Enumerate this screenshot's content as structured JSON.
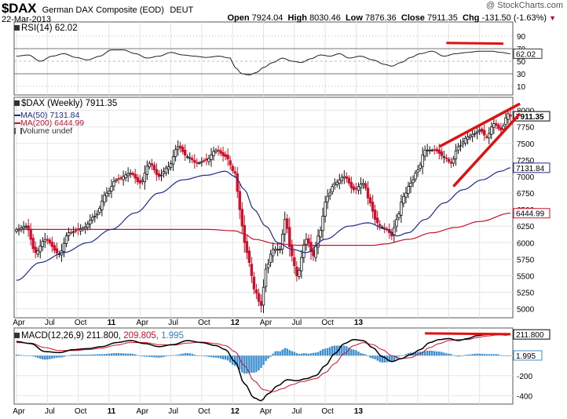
{
  "header": {
    "symbol": "$DAX",
    "company": "German DAX Composite (EOD)",
    "exchange": "DEUT",
    "date": "22-Mar-2013",
    "copyright": "@ StockCharts.com",
    "open_label": "Open",
    "open": "7924.04",
    "high_label": "High",
    "high": "8030.46",
    "low_label": "Low",
    "low": "7876.36",
    "close_label": "Close",
    "close": "7911.35",
    "chg_label": "Chg",
    "chg": "-131.50 (-1.63%)",
    "chg_icon": "down-triangle-icon"
  },
  "legend": {
    "price": "$DAX (Weekly) 7911.35",
    "ma50": "MA(50) 7131.84",
    "ma200": "MA(200) 6444.99",
    "volume": "Volume undef",
    "rsi": "RSI(14) 62.02",
    "macd_prefix": "MACD(12,26,9)",
    "macd_line": "211.800,",
    "macd_signal": "209.805,",
    "macd_hist": "1.995"
  },
  "chart_data": {
    "type": "candlestick",
    "period": "weekly",
    "x_tick_labels": [
      "Apr",
      "Jul",
      "Oct",
      "11",
      "Apr",
      "Jul",
      "Oct",
      "12",
      "Apr",
      "Jul",
      "Oct",
      "13"
    ],
    "price": {
      "ylim": [
        4900,
        8150
      ],
      "y_ticks": [
        5000,
        5250,
        5500,
        5750,
        6000,
        6250,
        6500,
        6750,
        7000,
        7250,
        7500,
        7750,
        8000
      ],
      "last_labels": {
        "close": "7911.35",
        "ma50": "7131.84",
        "ma200": "6444.99"
      },
      "close_anchors": [
        [
          0,
          6200
        ],
        [
          4,
          6250
        ],
        [
          8,
          5850
        ],
        [
          12,
          6050
        ],
        [
          18,
          5830
        ],
        [
          22,
          6150
        ],
        [
          28,
          6220
        ],
        [
          33,
          6400
        ],
        [
          38,
          6750
        ],
        [
          42,
          6950
        ],
        [
          48,
          7050
        ],
        [
          52,
          6900
        ],
        [
          56,
          7200
        ],
        [
          60,
          7000
        ],
        [
          64,
          7150
        ],
        [
          68,
          7450
        ],
        [
          72,
          7300
        ],
        [
          76,
          7200
        ],
        [
          80,
          7250
        ],
        [
          84,
          7400
        ],
        [
          88,
          7300
        ],
        [
          92,
          7050
        ],
        [
          94,
          6500
        ],
        [
          96,
          6000
        ],
        [
          98,
          5700
        ],
        [
          100,
          5300
        ],
        [
          103,
          5050
        ],
        [
          105,
          5600
        ],
        [
          108,
          5900
        ],
        [
          111,
          5900
        ],
        [
          113,
          6350
        ],
        [
          116,
          5800
        ],
        [
          118,
          5500
        ],
        [
          122,
          6050
        ],
        [
          125,
          5800
        ],
        [
          127,
          6100
        ],
        [
          131,
          6700
        ],
        [
          134,
          6900
        ],
        [
          138,
          7000
        ],
        [
          142,
          6800
        ],
        [
          146,
          6900
        ],
        [
          149,
          6600
        ],
        [
          151,
          6350
        ],
        [
          153,
          6250
        ],
        [
          156,
          6200
        ],
        [
          158,
          6100
        ],
        [
          160,
          6350
        ],
        [
          163,
          6700
        ],
        [
          166,
          6900
        ],
        [
          169,
          7100
        ],
        [
          172,
          7400
        ],
        [
          176,
          7400
        ],
        [
          180,
          7300
        ],
        [
          183,
          7200
        ],
        [
          186,
          7450
        ],
        [
          190,
          7600
        ],
        [
          193,
          7650
        ],
        [
          195,
          7700
        ],
        [
          198,
          7600
        ],
        [
          201,
          7800
        ],
        [
          204,
          7700
        ],
        [
          207,
          7950
        ],
        [
          208,
          7911
        ]
      ],
      "ma50_anchors": [
        [
          0,
          5430
        ],
        [
          10,
          5700
        ],
        [
          20,
          5850
        ],
        [
          30,
          6000
        ],
        [
          40,
          6200
        ],
        [
          50,
          6450
        ],
        [
          60,
          6750
        ],
        [
          70,
          6950
        ],
        [
          80,
          7020
        ],
        [
          88,
          7080
        ],
        [
          92,
          7000
        ],
        [
          96,
          6800
        ],
        [
          100,
          6500
        ],
        [
          105,
          6250
        ],
        [
          110,
          6000
        ],
        [
          116,
          5900
        ],
        [
          122,
          5850
        ],
        [
          130,
          6050
        ],
        [
          140,
          6250
        ],
        [
          148,
          6300
        ],
        [
          156,
          6200
        ],
        [
          160,
          6100
        ],
        [
          165,
          6150
        ],
        [
          172,
          6350
        ],
        [
          180,
          6600
        ],
        [
          188,
          6800
        ],
        [
          196,
          6950
        ],
        [
          204,
          7080
        ],
        [
          208,
          7132
        ]
      ],
      "ma200_anchors": [
        [
          0,
          6200
        ],
        [
          20,
          6200
        ],
        [
          40,
          6200
        ],
        [
          60,
          6200
        ],
        [
          80,
          6200
        ],
        [
          92,
          6180
        ],
        [
          96,
          6130
        ],
        [
          100,
          6050
        ],
        [
          110,
          5980
        ],
        [
          120,
          5960
        ],
        [
          140,
          5960
        ],
        [
          150,
          5960
        ],
        [
          155,
          5980
        ],
        [
          165,
          6050
        ],
        [
          175,
          6150
        ],
        [
          185,
          6230
        ],
        [
          195,
          6320
        ],
        [
          208,
          6445
        ]
      ]
    },
    "rsi": {
      "ylim": [
        0,
        100
      ],
      "y_ticks": [
        10,
        30,
        50,
        70,
        90
      ],
      "last": "62.02",
      "anchors": [
        [
          0,
          58
        ],
        [
          5,
          60
        ],
        [
          10,
          50
        ],
        [
          15,
          58
        ],
        [
          20,
          62
        ],
        [
          25,
          56
        ],
        [
          30,
          52
        ],
        [
          35,
          58
        ],
        [
          40,
          68
        ],
        [
          45,
          68
        ],
        [
          50,
          62
        ],
        [
          55,
          55
        ],
        [
          60,
          58
        ],
        [
          65,
          64
        ],
        [
          70,
          60
        ],
        [
          75,
          58
        ],
        [
          80,
          56
        ],
        [
          85,
          58
        ],
        [
          90,
          55
        ],
        [
          92,
          40
        ],
        [
          95,
          30
        ],
        [
          98,
          28
        ],
        [
          101,
          32
        ],
        [
          104,
          40
        ],
        [
          108,
          48
        ],
        [
          112,
          55
        ],
        [
          116,
          50
        ],
        [
          120,
          48
        ],
        [
          124,
          54
        ],
        [
          128,
          60
        ],
        [
          132,
          58
        ],
        [
          136,
          62
        ],
        [
          140,
          55
        ],
        [
          145,
          58
        ],
        [
          150,
          52
        ],
        [
          155,
          45
        ],
        [
          158,
          42
        ],
        [
          162,
          48
        ],
        [
          166,
          56
        ],
        [
          170,
          62
        ],
        [
          175,
          66
        ],
        [
          180,
          58
        ],
        [
          185,
          62
        ],
        [
          190,
          64
        ],
        [
          195,
          66
        ],
        [
          200,
          66
        ],
        [
          204,
          64
        ],
        [
          208,
          62
        ]
      ]
    },
    "macd": {
      "ylim": [
        -460,
        260
      ],
      "y_ticks": [
        -400,
        -200,
        0
      ],
      "last_labels": {
        "macd": "211.800",
        "histogram": "1.995"
      },
      "macd_anchors": [
        [
          0,
          140
        ],
        [
          6,
          120
        ],
        [
          12,
          40
        ],
        [
          18,
          30
        ],
        [
          24,
          60
        ],
        [
          30,
          70
        ],
        [
          36,
          90
        ],
        [
          42,
          130
        ],
        [
          48,
          150
        ],
        [
          54,
          120
        ],
        [
          60,
          90
        ],
        [
          66,
          110
        ],
        [
          72,
          150
        ],
        [
          78,
          130
        ],
        [
          84,
          100
        ],
        [
          88,
          60
        ],
        [
          92,
          -60
        ],
        [
          96,
          -280
        ],
        [
          100,
          -420
        ],
        [
          103,
          -450
        ],
        [
          106,
          -380
        ],
        [
          110,
          -300
        ],
        [
          114,
          -240
        ],
        [
          118,
          -250
        ],
        [
          122,
          -230
        ],
        [
          126,
          -200
        ],
        [
          130,
          -100
        ],
        [
          134,
          20
        ],
        [
          138,
          120
        ],
        [
          142,
          160
        ],
        [
          146,
          150
        ],
        [
          150,
          80
        ],
        [
          154,
          -10
        ],
        [
          158,
          -60
        ],
        [
          162,
          -30
        ],
        [
          166,
          10
        ],
        [
          170,
          60
        ],
        [
          174,
          130
        ],
        [
          178,
          160
        ],
        [
          182,
          170
        ],
        [
          186,
          150
        ],
        [
          190,
          170
        ],
        [
          194,
          200
        ],
        [
          198,
          210
        ],
        [
          202,
          220
        ],
        [
          206,
          205
        ],
        [
          208,
          212
        ]
      ],
      "signal_anchors": [
        [
          0,
          130
        ],
        [
          6,
          125
        ],
        [
          12,
          80
        ],
        [
          18,
          50
        ],
        [
          24,
          50
        ],
        [
          30,
          60
        ],
        [
          36,
          75
        ],
        [
          42,
          105
        ],
        [
          48,
          130
        ],
        [
          54,
          130
        ],
        [
          60,
          110
        ],
        [
          66,
          105
        ],
        [
          72,
          125
        ],
        [
          78,
          135
        ],
        [
          84,
          120
        ],
        [
          88,
          100
        ],
        [
          92,
          40
        ],
        [
          96,
          -100
        ],
        [
          100,
          -250
        ],
        [
          104,
          -340
        ],
        [
          108,
          -360
        ],
        [
          112,
          -330
        ],
        [
          116,
          -290
        ],
        [
          120,
          -260
        ],
        [
          126,
          -230
        ],
        [
          130,
          -170
        ],
        [
          134,
          -80
        ],
        [
          138,
          20
        ],
        [
          142,
          100
        ],
        [
          146,
          130
        ],
        [
          150,
          110
        ],
        [
          154,
          60
        ],
        [
          158,
          0
        ],
        [
          162,
          -30
        ],
        [
          166,
          -20
        ],
        [
          170,
          20
        ],
        [
          174,
          80
        ],
        [
          178,
          120
        ],
        [
          182,
          150
        ],
        [
          186,
          160
        ],
        [
          190,
          160
        ],
        [
          194,
          180
        ],
        [
          198,
          195
        ],
        [
          202,
          205
        ],
        [
          206,
          210
        ],
        [
          208,
          210
        ]
      ]
    },
    "annotations": {
      "wedge": "red trend lines drawn over price and RSI/MACD highs"
    }
  }
}
